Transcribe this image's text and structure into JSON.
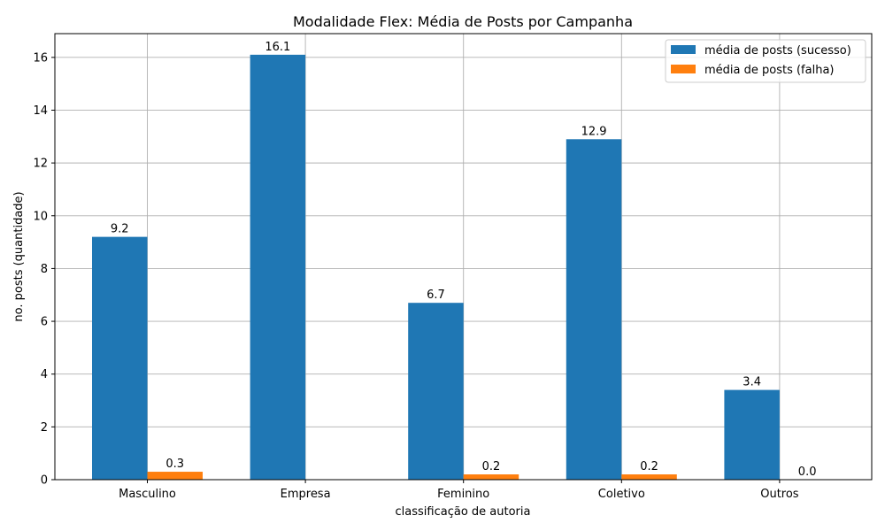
{
  "chart_data": {
    "type": "bar",
    "title": "Modalidade Flex: Média de Posts por Campanha",
    "xlabel": "classificação de autoria",
    "ylabel": "no. posts (quantidade)",
    "categories": [
      "Masculino",
      "Empresa",
      "Feminino",
      "Coletivo",
      "Outros"
    ],
    "series": [
      {
        "name": "média de posts (sucesso)",
        "color": "#1f77b4",
        "values": [
          9.2,
          16.1,
          6.7,
          12.9,
          3.4
        ],
        "labels": [
          "9.2",
          "16.1",
          "6.7",
          "12.9",
          "3.4"
        ]
      },
      {
        "name": "média de posts (falha)",
        "color": "#ff7f0e",
        "values": [
          0.3,
          null,
          0.2,
          0.2,
          0.0
        ],
        "labels": [
          "0.3",
          null,
          "0.2",
          "0.2",
          "0.0"
        ]
      }
    ],
    "ylim": [
      0,
      16.9
    ],
    "yticks": [
      0,
      2,
      4,
      6,
      8,
      10,
      12,
      14,
      16
    ],
    "grid": true,
    "legend_position": "top-right"
  }
}
